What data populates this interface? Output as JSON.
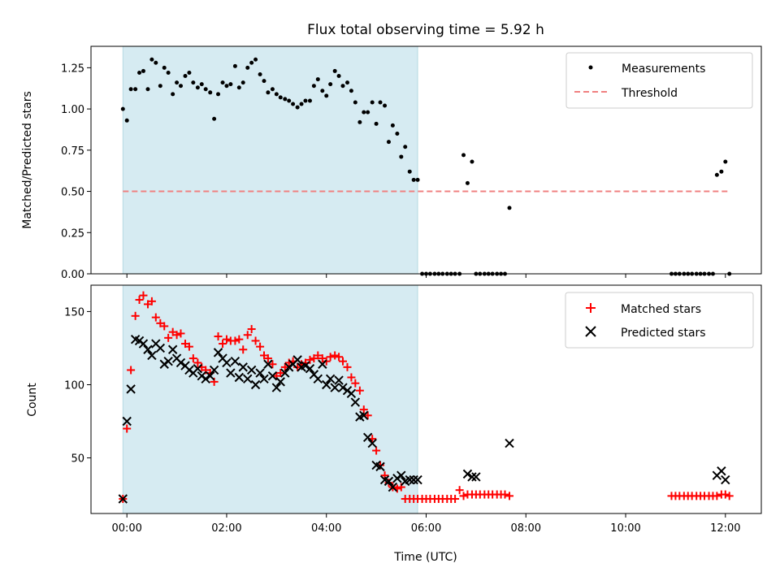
{
  "chart_data": [
    {
      "type": "scatter",
      "title": "Flux total observing time = 5.92 h",
      "xlabel": "",
      "ylabel": "Matched/Predicted stars",
      "ylim": [
        0,
        1.38
      ],
      "xlim": [
        -0.72,
        12.72
      ],
      "shaded_span": {
        "start": -0.08,
        "end": 5.83,
        "color": "#add8e6"
      },
      "yticks": [
        "0.00",
        "0.25",
        "0.50",
        "0.75",
        "1.00",
        "1.25"
      ],
      "ytick_values": [
        0,
        0.25,
        0.5,
        0.75,
        1.0,
        1.25
      ],
      "legend_position": "upper right",
      "series": [
        {
          "name": "Measurements",
          "marker": "dot",
          "color": "#000000",
          "x": [
            -0.08,
            0.0,
            0.08,
            0.17,
            0.25,
            0.33,
            0.42,
            0.5,
            0.58,
            0.67,
            0.75,
            0.83,
            0.92,
            1.0,
            1.08,
            1.17,
            1.25,
            1.33,
            1.42,
            1.5,
            1.58,
            1.67,
            1.75,
            1.83,
            1.92,
            2.0,
            2.08,
            2.17,
            2.25,
            2.33,
            2.42,
            2.5,
            2.58,
            2.67,
            2.75,
            2.83,
            2.92,
            3.0,
            3.08,
            3.17,
            3.25,
            3.33,
            3.42,
            3.5,
            3.58,
            3.67,
            3.75,
            3.83,
            3.92,
            4.0,
            4.08,
            4.17,
            4.25,
            4.33,
            4.42,
            4.5,
            4.58,
            4.67,
            4.75,
            4.83,
            4.92,
            5.0,
            5.08,
            5.17,
            5.25,
            5.33,
            5.42,
            5.5,
            5.58,
            5.67,
            5.75,
            5.83,
            5.92,
            6.0,
            6.08,
            6.17,
            6.25,
            6.33,
            6.42,
            6.5,
            6.58,
            6.67,
            6.75,
            6.83,
            6.92,
            7.0,
            7.08,
            7.17,
            7.25,
            7.33,
            7.42,
            7.5,
            7.58,
            7.67,
            10.92,
            11.0,
            11.08,
            11.17,
            11.25,
            11.33,
            11.42,
            11.5,
            11.58,
            11.67,
            11.75,
            11.83,
            11.92,
            12.0,
            12.08
          ],
          "y": [
            1.0,
            0.93,
            1.12,
            1.12,
            1.22,
            1.23,
            1.12,
            1.3,
            1.28,
            1.14,
            1.25,
            1.22,
            1.09,
            1.16,
            1.14,
            1.2,
            1.22,
            1.16,
            1.13,
            1.15,
            1.12,
            1.1,
            0.94,
            1.09,
            1.16,
            1.14,
            1.15,
            1.26,
            1.13,
            1.16,
            1.25,
            1.28,
            1.3,
            1.21,
            1.17,
            1.1,
            1.12,
            1.09,
            1.07,
            1.06,
            1.05,
            1.03,
            1.01,
            1.03,
            1.05,
            1.05,
            1.14,
            1.18,
            1.11,
            1.08,
            1.15,
            1.23,
            1.2,
            1.14,
            1.16,
            1.11,
            1.04,
            0.92,
            0.98,
            0.98,
            1.04,
            0.91,
            1.04,
            1.02,
            0.8,
            0.9,
            0.85,
            0.71,
            0.77,
            0.62,
            0.57,
            0.57,
            0.0,
            0.0,
            0.0,
            0.0,
            0.0,
            0.0,
            0.0,
            0.0,
            0.0,
            0.0,
            0.72,
            0.55,
            0.68,
            0.0,
            0.0,
            0.0,
            0.0,
            0.0,
            0.0,
            0.0,
            0.0,
            0.4,
            0.0,
            0.0,
            0.0,
            0.0,
            0.0,
            0.0,
            0.0,
            0.0,
            0.0,
            0.0,
            0.0,
            0.6,
            0.62,
            0.68,
            0.0
          ]
        },
        {
          "name": "Threshold",
          "marker": "dashed-line",
          "color": "#f08080",
          "x": [
            -0.08,
            12.08
          ],
          "y": [
            0.5,
            0.5
          ]
        }
      ]
    },
    {
      "type": "scatter",
      "title": "",
      "xlabel": "Time (UTC)",
      "ylabel": "Count",
      "ylim": [
        12,
        168
      ],
      "xlim": [
        -0.72,
        12.72
      ],
      "shaded_span": {
        "start": -0.08,
        "end": 5.83,
        "color": "#add8e6"
      },
      "yticks": [
        "50",
        "100",
        "150"
      ],
      "ytick_values": [
        50,
        100,
        150
      ],
      "xticks": [
        "00:00",
        "02:00",
        "04:00",
        "06:00",
        "08:00",
        "10:00",
        "12:00"
      ],
      "xtick_values": [
        0,
        2,
        4,
        6,
        8,
        10,
        12
      ],
      "legend_position": "upper right",
      "series": [
        {
          "name": "Matched stars",
          "marker": "plus",
          "color": "#ff0000",
          "x": [
            -0.08,
            0.0,
            0.08,
            0.17,
            0.25,
            0.33,
            0.42,
            0.5,
            0.58,
            0.67,
            0.75,
            0.83,
            0.92,
            1.0,
            1.08,
            1.17,
            1.25,
            1.33,
            1.42,
            1.5,
            1.58,
            1.67,
            1.75,
            1.83,
            1.92,
            2.0,
            2.08,
            2.17,
            2.25,
            2.33,
            2.42,
            2.5,
            2.58,
            2.67,
            2.75,
            2.83,
            2.92,
            3.0,
            3.08,
            3.17,
            3.25,
            3.33,
            3.42,
            3.5,
            3.58,
            3.67,
            3.75,
            3.83,
            3.92,
            4.0,
            4.08,
            4.17,
            4.25,
            4.33,
            4.42,
            4.5,
            4.58,
            4.67,
            4.75,
            4.83,
            4.92,
            5.0,
            5.08,
            5.17,
            5.25,
            5.33,
            5.42,
            5.5,
            5.58,
            5.67,
            5.75,
            5.83,
            5.92,
            6.0,
            6.08,
            6.17,
            6.25,
            6.33,
            6.42,
            6.5,
            6.58,
            6.67,
            6.75,
            6.83,
            6.92,
            7.0,
            7.08,
            7.17,
            7.25,
            7.33,
            7.42,
            7.5,
            7.58,
            7.67,
            10.92,
            11.0,
            11.08,
            11.17,
            11.25,
            11.33,
            11.42,
            11.5,
            11.58,
            11.67,
            11.75,
            11.83,
            11.92,
            12.0,
            12.08
          ],
          "y": [
            22,
            70,
            110,
            147,
            158,
            161,
            155,
            157,
            146,
            142,
            140,
            132,
            136,
            134,
            135,
            128,
            126,
            118,
            115,
            112,
            110,
            108,
            102,
            133,
            128,
            131,
            130,
            130,
            131,
            124,
            134,
            138,
            130,
            126,
            120,
            118,
            114,
            106,
            108,
            112,
            115,
            116,
            112,
            114,
            115,
            117,
            118,
            120,
            118,
            116,
            119,
            120,
            119,
            116,
            112,
            105,
            101,
            96,
            83,
            79,
            63,
            55,
            45,
            38,
            33,
            30,
            29,
            30,
            22,
            22,
            22,
            22,
            22,
            22,
            22,
            22,
            22,
            22,
            22,
            22,
            22,
            28,
            24,
            25,
            25,
            25,
            25,
            25,
            25,
            25,
            25,
            25,
            25,
            24,
            24,
            24,
            24,
            24,
            24,
            24,
            24,
            24,
            24,
            24,
            24,
            24,
            25,
            25,
            24
          ],
          "mean_label_note": ""
        },
        {
          "name": "Predicted stars",
          "marker": "x",
          "color": "#000000",
          "x": [
            -0.08,
            0.0,
            0.08,
            0.17,
            0.25,
            0.33,
            0.42,
            0.5,
            0.58,
            0.67,
            0.75,
            0.83,
            0.92,
            1.0,
            1.08,
            1.17,
            1.25,
            1.33,
            1.42,
            1.5,
            1.58,
            1.67,
            1.75,
            1.83,
            1.92,
            2.0,
            2.08,
            2.17,
            2.25,
            2.33,
            2.42,
            2.5,
            2.58,
            2.67,
            2.75,
            2.83,
            2.92,
            3.0,
            3.08,
            3.17,
            3.25,
            3.33,
            3.42,
            3.5,
            3.58,
            3.67,
            3.75,
            3.83,
            3.92,
            4.0,
            4.08,
            4.17,
            4.25,
            4.33,
            4.42,
            4.5,
            4.58,
            4.67,
            4.75,
            4.83,
            4.92,
            5.0,
            5.08,
            5.17,
            5.25,
            5.33,
            5.42,
            5.5,
            5.58,
            5.67,
            5.75,
            5.83,
            6.83,
            6.92,
            7.0,
            7.67,
            11.83,
            11.92,
            12.0
          ],
          "y": [
            22,
            75,
            97,
            131,
            130,
            128,
            124,
            120,
            128,
            125,
            114,
            116,
            124,
            118,
            115,
            113,
            110,
            108,
            111,
            106,
            104,
            106,
            110,
            122,
            118,
            115,
            108,
            116,
            105,
            112,
            104,
            110,
            100,
            108,
            104,
            114,
            106,
            98,
            102,
            108,
            112,
            114,
            117,
            112,
            113,
            111,
            107,
            104,
            114,
            100,
            104,
            98,
            103,
            98,
            96,
            94,
            88,
            78,
            79,
            64,
            60,
            45,
            44,
            35,
            34,
            30,
            36,
            38,
            34,
            35,
            35,
            35,
            39,
            37,
            37,
            60,
            38,
            41,
            35
          ]
        }
      ]
    }
  ]
}
